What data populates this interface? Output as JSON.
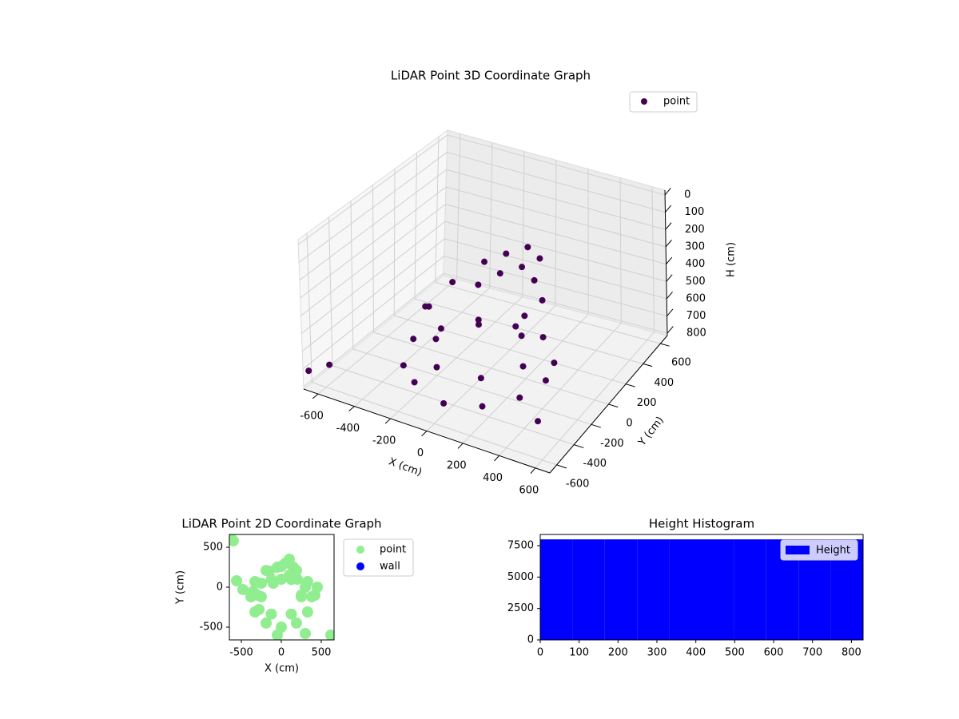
{
  "chart_data": [
    {
      "type": "scatter3d",
      "title": "LiDAR Point 3D Coordinate Graph",
      "xlabel": "X (cm)",
      "ylabel": "Y (cm)",
      "zlabel": "H (cm)",
      "xlim": [
        -680,
        680
      ],
      "ylim": [
        -680,
        680
      ],
      "zlim": [
        -28,
        813
      ],
      "z_inverted": true,
      "xticks": [
        -600,
        -400,
        -200,
        0,
        200,
        400,
        600
      ],
      "yticks": [
        -600,
        -400,
        -200,
        0,
        200,
        400,
        600
      ],
      "zticks": [
        0,
        100,
        200,
        300,
        400,
        500,
        600,
        700,
        800
      ],
      "legend": "upper right",
      "series": [
        {
          "name": "point",
          "color": "#440154",
          "x": [
            380,
            329,
            190,
            0,
            -190,
            -329,
            -380,
            -329,
            -190,
            0,
            190,
            329,
            250,
            125,
            -125,
            -250,
            -125,
            125,
            100,
            200,
            300,
            50,
            -50,
            -150,
            150,
            250,
            0,
            -100,
            -300,
            -350,
            -250,
            -720,
            -650,
            600
          ],
          "y": [
            -120,
            70,
            209,
            260,
            209,
            70,
            -120,
            -310,
            -449,
            -500,
            -449,
            -310,
            -120,
            97,
            97,
            -120,
            -337,
            -337,
            150,
            100,
            0,
            300,
            250,
            200,
            250,
            -100,
            100,
            50,
            -100,
            -50,
            50,
            -560,
            -480,
            -650
          ],
          "z": [
            700,
            720,
            690,
            710,
            700,
            720,
            700,
            740,
            720,
            750,
            730,
            710,
            660,
            640,
            650,
            660,
            670,
            650,
            280,
            300,
            330,
            260,
            300,
            350,
            270,
            380,
            320,
            390,
            500,
            540,
            420,
            780,
            760,
            560
          ]
        }
      ]
    },
    {
      "type": "scatter",
      "title": "LiDAR Point 2D Coordinate Graph",
      "xlabel": "X (cm)",
      "ylabel": "Y (cm)",
      "xlim": [
        -650,
        660
      ],
      "ylim": [
        -660,
        660
      ],
      "xticks": [
        -500,
        0,
        500
      ],
      "yticks": [
        -500,
        0,
        500
      ],
      "legend": "outside upper right",
      "series": [
        {
          "name": "point",
          "color": "#90ee90",
          "x": [
            380,
            329,
            190,
            0,
            -190,
            -329,
            -380,
            -329,
            -190,
            0,
            190,
            329,
            250,
            125,
            -125,
            -250,
            -125,
            125,
            100,
            200,
            300,
            50,
            -50,
            -150,
            150,
            250,
            0,
            -100,
            -300,
            -350,
            -250,
            -620,
            -600,
            620,
            640,
            -560,
            -480,
            -280,
            300,
            450,
            420,
            100,
            -50
          ],
          "y": [
            -120,
            70,
            209,
            260,
            209,
            70,
            -120,
            -310,
            -449,
            -500,
            -449,
            -310,
            -120,
            97,
            97,
            -120,
            -337,
            -337,
            150,
            100,
            0,
            300,
            250,
            200,
            250,
            -100,
            100,
            50,
            -100,
            -50,
            50,
            600,
            580,
            -600,
            -620,
            80,
            -30,
            -280,
            -580,
            0,
            -100,
            350,
            -600
          ]
        },
        {
          "name": "wall",
          "color": "#0000ff",
          "x": [],
          "y": []
        }
      ]
    },
    {
      "type": "histogram",
      "title": "Height Histogram",
      "name": "Height",
      "color": "#0000ff",
      "bins": [
        0,
        83,
        166,
        249,
        332,
        415,
        498,
        581,
        664,
        747,
        830
      ],
      "values": [
        8000,
        8000,
        8000,
        8000,
        8000,
        8000,
        8000,
        8000,
        8000,
        8000
      ],
      "xlim": [
        0,
        830
      ],
      "ylim": [
        0,
        8390
      ],
      "xticks": [
        0,
        100,
        200,
        300,
        400,
        500,
        600,
        700,
        800
      ],
      "yticks": [
        0,
        2500,
        5000,
        7500
      ],
      "legend": "upper right"
    }
  ]
}
